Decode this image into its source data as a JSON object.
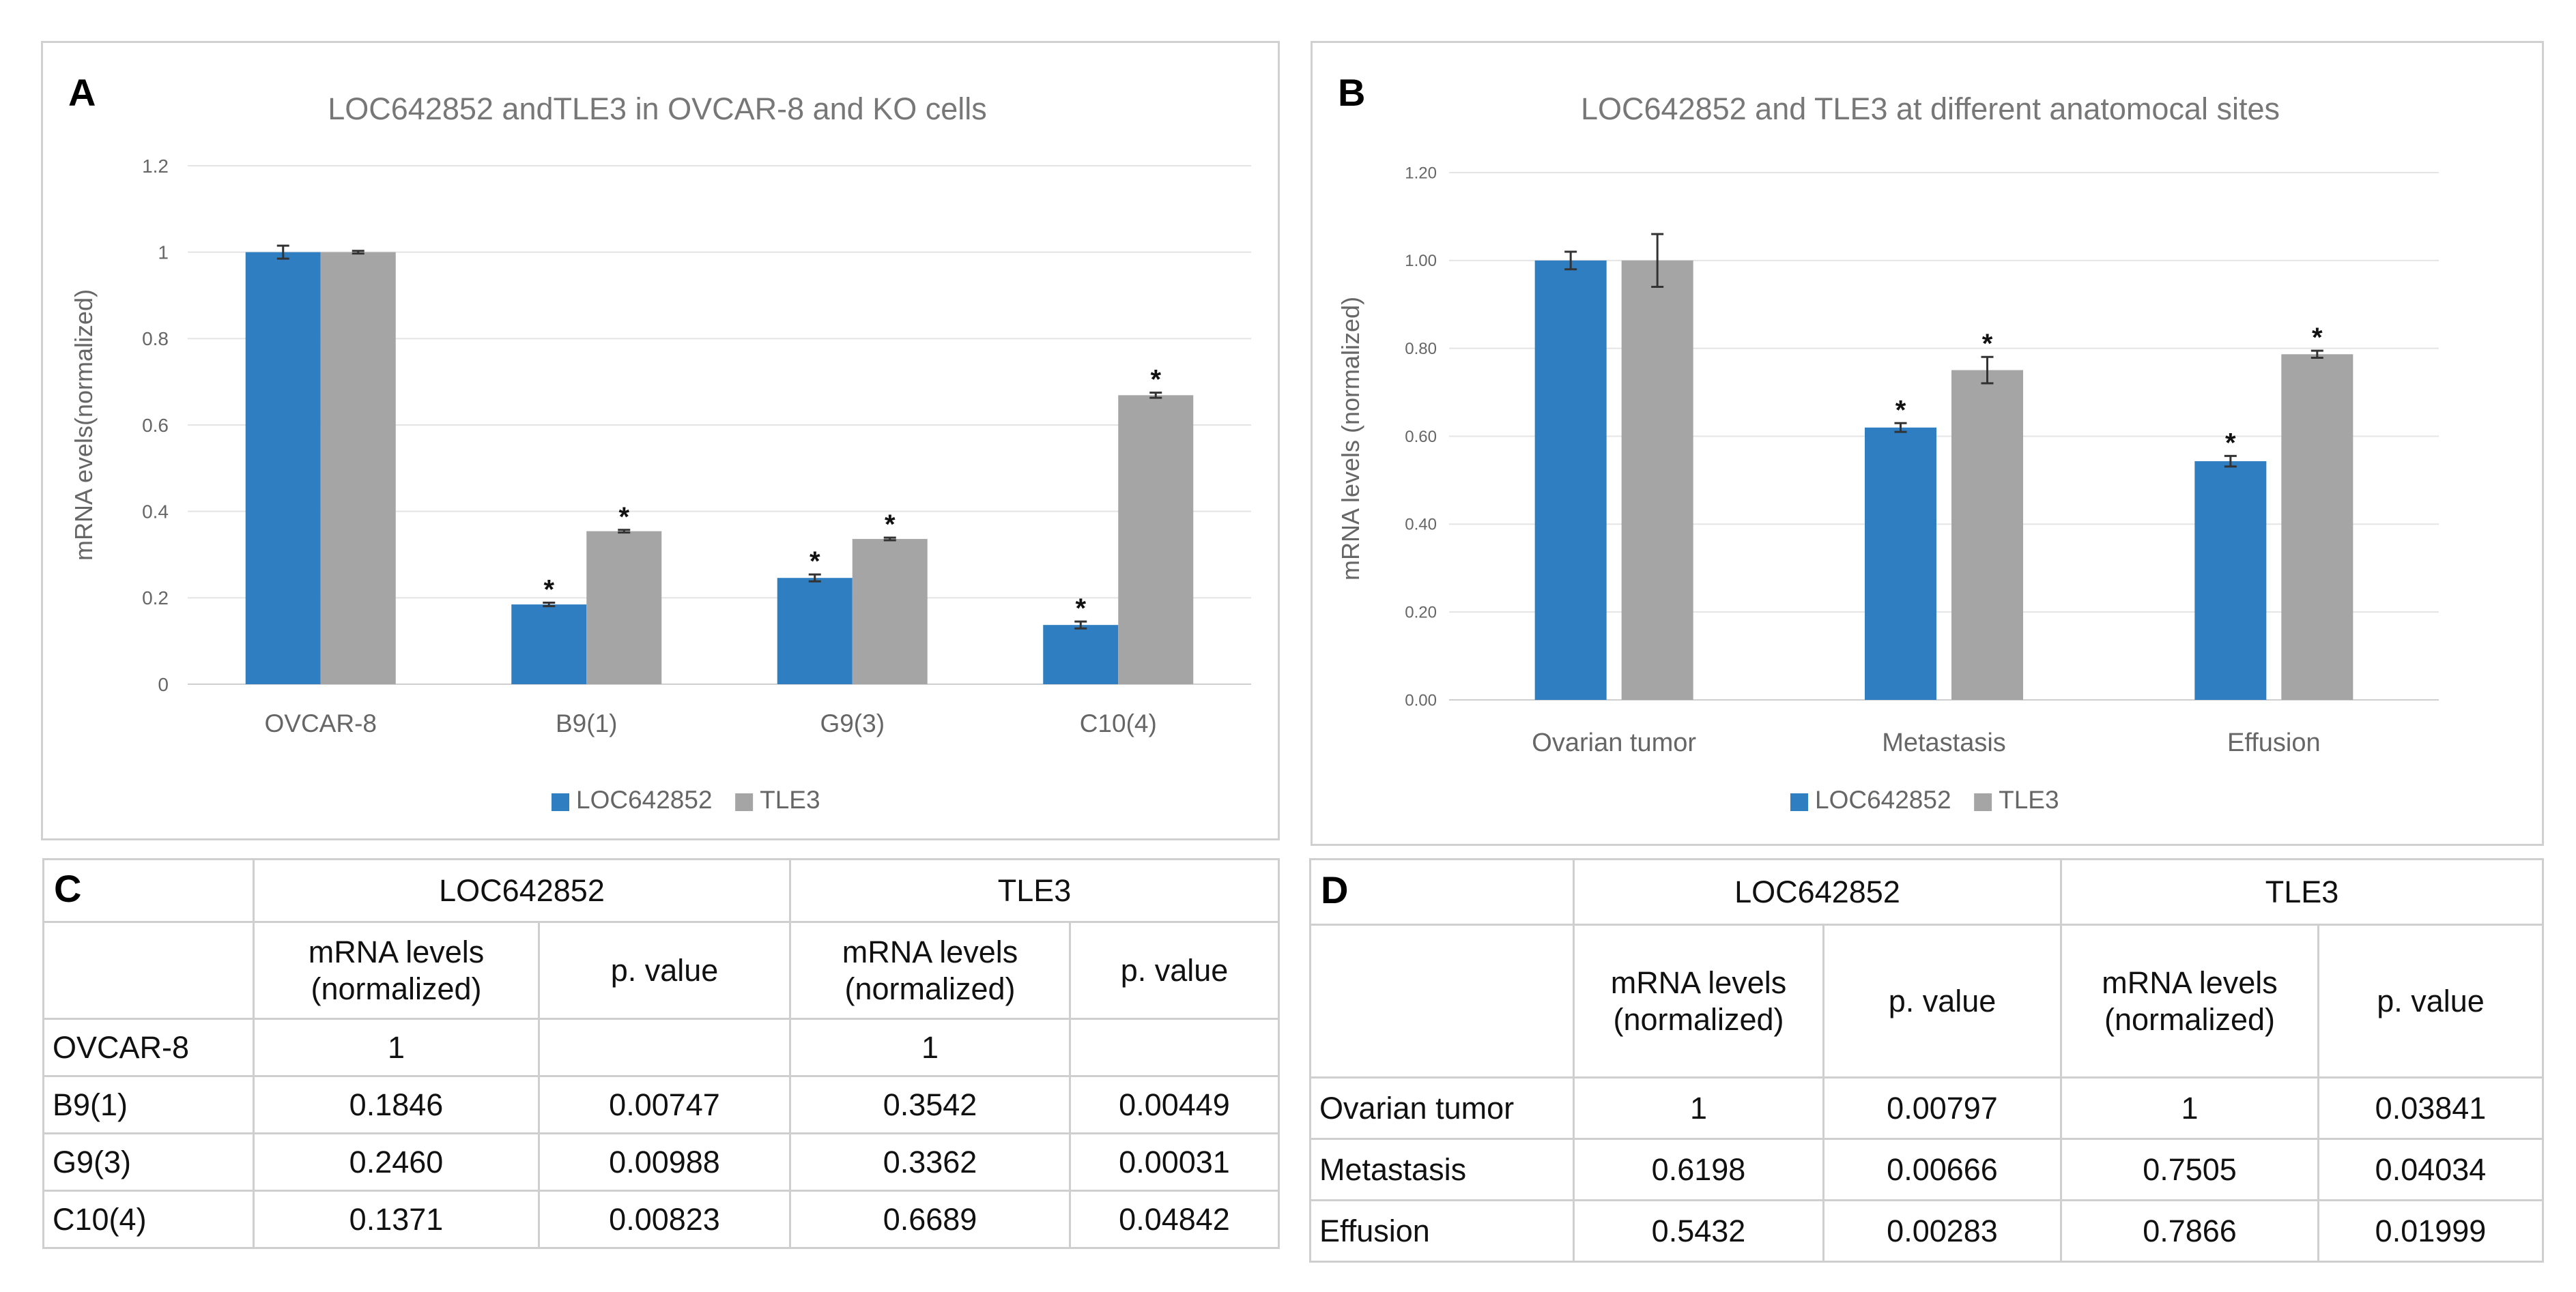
{
  "panels": {
    "A": {
      "label": "A",
      "chart_data": {
        "type": "bar",
        "title": "LOC642852 andTLE3 in OVCAR-8 and KO cells",
        "xlabel": "",
        "ylabel": "mRNA evels(normalized)",
        "categories": [
          "OVCAR-8",
          "B9(1)",
          "G9(3)",
          "C10(4)"
        ],
        "series": [
          {
            "name": "LOC642852",
            "color": "#2e7ec1",
            "values": [
              1.0,
              0.1846,
              0.246,
              0.1371
            ],
            "errors": [
              0.015,
              0.004,
              0.008,
              0.008
            ],
            "stars": [
              false,
              true,
              true,
              true
            ]
          },
          {
            "name": "TLE3",
            "color": "#a5a5a5",
            "values": [
              1.0,
              0.3542,
              0.3362,
              0.6689
            ],
            "errors": [
              0.003,
              0.003,
              0.003,
              0.006
            ],
            "stars": [
              false,
              true,
              true,
              true
            ]
          }
        ],
        "ylim": [
          0,
          1.2
        ],
        "yticks": [
          "0",
          "0.2",
          "0.4",
          "0.6",
          "0.8",
          "1",
          "1.2"
        ],
        "star_label": "*",
        "grid": true,
        "legend_position": "bottom"
      }
    },
    "B": {
      "label": "B",
      "chart_data": {
        "type": "bar",
        "title": "LOC642852 and TLE3 at different anatomocal sites",
        "xlabel": "",
        "ylabel": "mRNA levels (normalized)",
        "categories": [
          "Ovarian tumor",
          "Metastasis",
          "Effusion"
        ],
        "series": [
          {
            "name": "LOC642852",
            "color": "#2e7ec1",
            "values": [
              1.0,
              0.6198,
              0.5432
            ],
            "errors": [
              0.02,
              0.01,
              0.012
            ],
            "stars": [
              false,
              true,
              true
            ]
          },
          {
            "name": "TLE3",
            "color": "#a5a5a5",
            "values": [
              1.0,
              0.7505,
              0.7866
            ],
            "errors": [
              0.06,
              0.03,
              0.008
            ],
            "stars": [
              false,
              true,
              true
            ]
          }
        ],
        "ylim": [
          0,
          1.2
        ],
        "yticks": [
          "0.00",
          "0.20",
          "0.40",
          "0.60",
          "0.80",
          "1.00",
          "1.20"
        ],
        "star_label": "*",
        "grid": true,
        "legend_position": "bottom"
      }
    }
  },
  "tables": {
    "C": {
      "label": "C",
      "group_headers": [
        "LOC642852",
        "TLE3"
      ],
      "sub_headers": {
        "mrna": "mRNA levels\n(normalized)",
        "p": "p. value"
      },
      "rows": [
        {
          "name": "OVCAR-8",
          "loc_mrna": "1",
          "loc_p": "",
          "tle_mrna": "1",
          "tle_p": ""
        },
        {
          "name": "B9(1)",
          "loc_mrna": "0.1846",
          "loc_p": "0.00747",
          "tle_mrna": "0.3542",
          "tle_p": "0.00449"
        },
        {
          "name": "G9(3)",
          "loc_mrna": "0.2460",
          "loc_p": "0.00988",
          "tle_mrna": "0.3362",
          "tle_p": "0.00031"
        },
        {
          "name": "C10(4)",
          "loc_mrna": "0.1371",
          "loc_p": "0.00823",
          "tle_mrna": "0.6689",
          "tle_p": "0.04842"
        }
      ]
    },
    "D": {
      "label": "D",
      "group_headers": [
        "LOC642852",
        "TLE3"
      ],
      "sub_headers": {
        "mrna": "mRNA levels\n(normalized)",
        "p": "p. value"
      },
      "rows": [
        {
          "name": "Ovarian tumor",
          "loc_mrna": "1",
          "loc_p": "0.00797",
          "tle_mrna": "1",
          "tle_p": "0.03841"
        },
        {
          "name": "Metastasis",
          "loc_mrna": "0.6198",
          "loc_p": "0.00666",
          "tle_mrna": "0.7505",
          "tle_p": "0.04034"
        },
        {
          "name": "Effusion",
          "loc_mrna": "0.5432",
          "loc_p": "0.00283",
          "tle_mrna": "0.7866",
          "tle_p": "0.01999"
        }
      ]
    }
  }
}
